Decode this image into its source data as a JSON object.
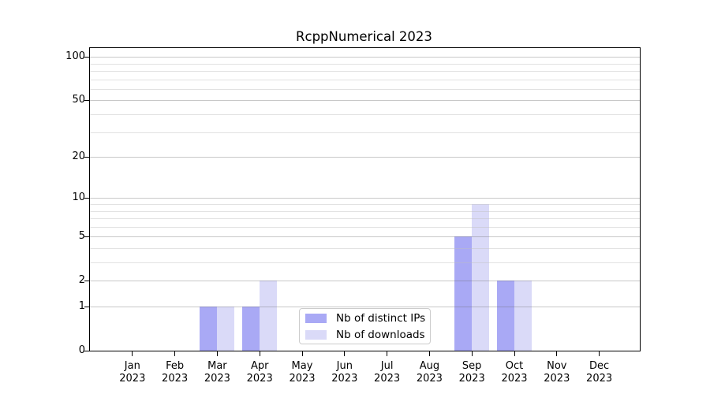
{
  "title": "RcppNumerical 2023",
  "chart_data": {
    "type": "bar",
    "title": "RcppNumerical 2023",
    "xlabel": "",
    "ylabel": "",
    "yscale": "log1p",
    "ylim": [
      0,
      110
    ],
    "grid": true,
    "legend_position": "bottom-center-inside",
    "year": "2023",
    "categories": [
      "Jan",
      "Feb",
      "Mar",
      "Apr",
      "May",
      "Jun",
      "Jul",
      "Aug",
      "Sep",
      "Oct",
      "Nov",
      "Dec"
    ],
    "series": [
      {
        "name": "Nb of distinct IPs",
        "color": "#a9a9f5",
        "values": [
          0,
          0,
          1,
          1,
          0,
          0,
          0,
          0,
          5,
          2,
          0,
          0
        ]
      },
      {
        "name": "Nb of downloads",
        "color": "#dadaf8",
        "values": [
          0,
          0,
          1,
          2,
          0,
          0,
          0,
          0,
          9,
          2,
          0,
          0
        ]
      }
    ],
    "ytick_values": [
      0,
      1,
      2,
      5,
      10,
      20,
      50,
      100
    ],
    "ytick_labels": [
      "0",
      "1",
      "2",
      "5",
      "10",
      "20",
      "50",
      "100"
    ],
    "major_gridline_values": [
      1,
      2,
      5,
      10,
      20,
      50,
      100
    ],
    "minor_gridline_values": [
      3,
      4,
      6,
      7,
      8,
      9,
      30,
      40,
      60,
      70,
      80,
      90
    ]
  },
  "colors": {
    "spine": "#000000",
    "background": "#ffffff",
    "major_grid": "#c9c9c9",
    "minor_grid": "#e9e9e9",
    "text": "#000000",
    "legend_border": "#cccccc"
  }
}
